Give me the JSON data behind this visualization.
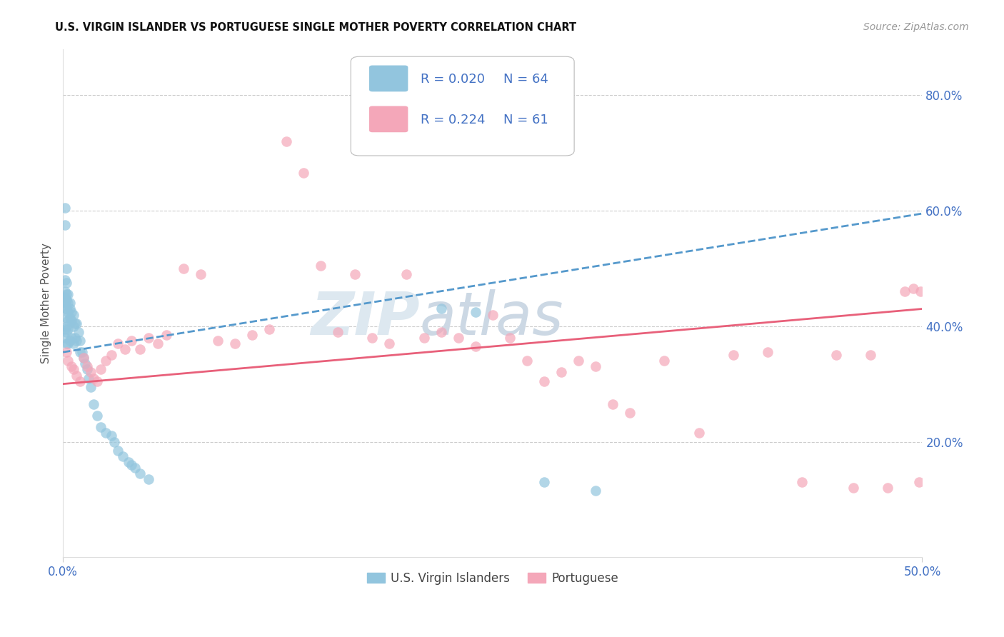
{
  "title": "U.S. VIRGIN ISLANDER VS PORTUGUESE SINGLE MOTHER POVERTY CORRELATION CHART",
  "source": "Source: ZipAtlas.com",
  "ylabel": "Single Mother Poverty",
  "ytick_labels": [
    "20.0%",
    "40.0%",
    "60.0%",
    "80.0%"
  ],
  "ytick_values": [
    0.2,
    0.4,
    0.6,
    0.8
  ],
  "xlim": [
    0.0,
    0.5
  ],
  "ylim": [
    0.0,
    0.88
  ],
  "legend_r1": "0.020",
  "legend_n1": "64",
  "legend_r2": "0.224",
  "legend_n2": "61",
  "color_blue": "#92c5de",
  "color_pink": "#f4a7b9",
  "color_blue_line": "#5599cc",
  "color_pink_line": "#e8607a",
  "color_axis_text": "#4472c4",
  "background": "#ffffff",
  "blue_x": [
    0.001,
    0.001,
    0.001,
    0.001,
    0.001,
    0.001,
    0.001,
    0.001,
    0.001,
    0.002,
    0.002,
    0.002,
    0.002,
    0.002,
    0.002,
    0.002,
    0.002,
    0.002,
    0.003,
    0.003,
    0.003,
    0.003,
    0.003,
    0.003,
    0.004,
    0.004,
    0.004,
    0.004,
    0.005,
    0.005,
    0.005,
    0.006,
    0.006,
    0.006,
    0.007,
    0.007,
    0.008,
    0.008,
    0.009,
    0.01,
    0.01,
    0.011,
    0.012,
    0.013,
    0.014,
    0.015,
    0.016,
    0.018,
    0.02,
    0.022,
    0.025,
    0.028,
    0.03,
    0.032,
    0.035,
    0.038,
    0.04,
    0.042,
    0.045,
    0.05,
    0.22,
    0.24,
    0.28,
    0.31
  ],
  "blue_y": [
    0.605,
    0.575,
    0.48,
    0.46,
    0.45,
    0.44,
    0.43,
    0.395,
    0.38,
    0.5,
    0.475,
    0.455,
    0.445,
    0.43,
    0.415,
    0.4,
    0.39,
    0.37,
    0.455,
    0.44,
    0.425,
    0.41,
    0.395,
    0.37,
    0.44,
    0.43,
    0.415,
    0.375,
    0.425,
    0.41,
    0.38,
    0.42,
    0.4,
    0.37,
    0.405,
    0.38,
    0.405,
    0.375,
    0.39,
    0.375,
    0.355,
    0.355,
    0.345,
    0.335,
    0.325,
    0.31,
    0.295,
    0.265,
    0.245,
    0.225,
    0.215,
    0.21,
    0.2,
    0.185,
    0.175,
    0.165,
    0.16,
    0.155,
    0.145,
    0.135,
    0.43,
    0.425,
    0.13,
    0.115
  ],
  "pink_x": [
    0.002,
    0.003,
    0.005,
    0.006,
    0.008,
    0.01,
    0.012,
    0.014,
    0.016,
    0.018,
    0.02,
    0.022,
    0.025,
    0.028,
    0.032,
    0.036,
    0.04,
    0.045,
    0.05,
    0.055,
    0.06,
    0.07,
    0.08,
    0.09,
    0.1,
    0.11,
    0.12,
    0.13,
    0.14,
    0.15,
    0.16,
    0.17,
    0.18,
    0.19,
    0.2,
    0.21,
    0.22,
    0.23,
    0.24,
    0.25,
    0.26,
    0.27,
    0.28,
    0.29,
    0.3,
    0.31,
    0.32,
    0.33,
    0.35,
    0.37,
    0.39,
    0.41,
    0.43,
    0.45,
    0.46,
    0.47,
    0.48,
    0.49,
    0.495,
    0.498,
    0.499
  ],
  "pink_y": [
    0.355,
    0.34,
    0.33,
    0.325,
    0.315,
    0.305,
    0.345,
    0.33,
    0.32,
    0.31,
    0.305,
    0.325,
    0.34,
    0.35,
    0.37,
    0.36,
    0.375,
    0.36,
    0.38,
    0.37,
    0.385,
    0.5,
    0.49,
    0.375,
    0.37,
    0.385,
    0.395,
    0.72,
    0.665,
    0.505,
    0.39,
    0.49,
    0.38,
    0.37,
    0.49,
    0.38,
    0.39,
    0.38,
    0.365,
    0.42,
    0.38,
    0.34,
    0.305,
    0.32,
    0.34,
    0.33,
    0.265,
    0.25,
    0.34,
    0.215,
    0.35,
    0.355,
    0.13,
    0.35,
    0.12,
    0.35,
    0.12,
    0.46,
    0.465,
    0.13,
    0.46
  ],
  "blue_line_x0": 0.0,
  "blue_line_x1": 0.5,
  "blue_line_y0": 0.355,
  "blue_line_y1": 0.595,
  "pink_line_x0": 0.0,
  "pink_line_x1": 0.5,
  "pink_line_y0": 0.3,
  "pink_line_y1": 0.43,
  "watermark_text": "ZIPatlas",
  "watermark_zip_color": "#d0dff0",
  "watermark_atlas_color": "#c8d8e8"
}
